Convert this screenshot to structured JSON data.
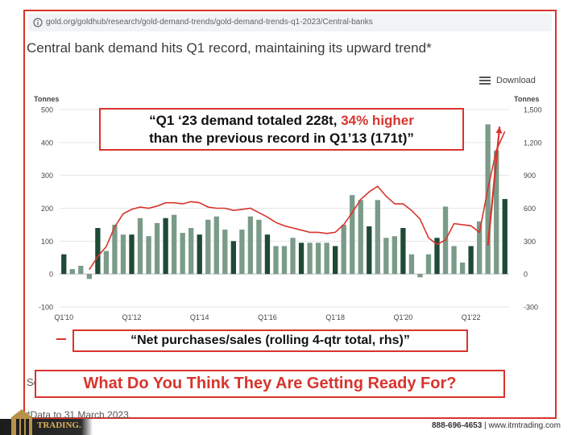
{
  "browser": {
    "url": "gold.org/goldhub/research/gold-demand-trends/gold-demand-trends-q1-2023/Central-banks"
  },
  "header": {
    "title": "Central bank demand hits Q1 record, maintaining its upward trend*",
    "download_label": "Download"
  },
  "callouts": {
    "top_line1_a": "“Q1 ‘23 demand totaled 228t, ",
    "top_line1_b": "34% higher",
    "top_line2": "than the previous record in Q1’13 (171t)”",
    "legend_text": "“Net purchases/sales (rolling 4-qtr total, rhs)”",
    "question": "What Do You Think They Are Getting Ready For?"
  },
  "source_fragment": "So",
  "footnote": "*Data to 31 March 2023.",
  "footer": {
    "brand": "TRADING.",
    "phone": "888-696-4653",
    "separator": " | ",
    "website": "www.itmtrading.com"
  },
  "colors": {
    "bar_light": "#7a9b88",
    "bar_dark": "#1f4a35",
    "line": "#d8342c",
    "accent": "#d8342c"
  },
  "chart_data": {
    "type": "bar",
    "left_axis": {
      "label": "Tonnes",
      "ticks": [
        500,
        400,
        300,
        200,
        100,
        0,
        -100
      ],
      "range": [
        -100,
        500
      ]
    },
    "right_axis": {
      "label": "Tonnes",
      "ticks": [
        "1,500",
        "1,200",
        "900",
        "600",
        "300",
        "0",
        "-300"
      ],
      "range": [
        -300,
        1500
      ]
    },
    "x_tick_labels": [
      "Q1'10",
      "Q1'12",
      "Q1'14",
      "Q1'16",
      "Q1'18",
      "Q1'20",
      "Q1'22"
    ],
    "quarters": [
      "Q1'10",
      "Q2'10",
      "Q3'10",
      "Q4'10",
      "Q1'11",
      "Q2'11",
      "Q3'11",
      "Q4'11",
      "Q1'12",
      "Q2'12",
      "Q3'12",
      "Q4'12",
      "Q1'13",
      "Q2'13",
      "Q3'13",
      "Q4'13",
      "Q1'14",
      "Q2'14",
      "Q3'14",
      "Q4'14",
      "Q1'15",
      "Q2'15",
      "Q3'15",
      "Q4'15",
      "Q1'16",
      "Q2'16",
      "Q3'16",
      "Q4'16",
      "Q1'17",
      "Q2'17",
      "Q3'17",
      "Q4'17",
      "Q1'18",
      "Q2'18",
      "Q3'18",
      "Q4'18",
      "Q1'19",
      "Q2'19",
      "Q3'19",
      "Q4'19",
      "Q1'20",
      "Q2'20",
      "Q3'20",
      "Q4'20",
      "Q1'21",
      "Q2'21",
      "Q3'21",
      "Q4'21",
      "Q1'22",
      "Q2'22",
      "Q3'22",
      "Q4'22",
      "Q1'23"
    ],
    "series": [
      {
        "type": "bar",
        "axis": "left",
        "values": [
          60,
          15,
          25,
          -15,
          140,
          70,
          150,
          120,
          120,
          170,
          115,
          155,
          170,
          180,
          125,
          140,
          120,
          165,
          175,
          135,
          100,
          135,
          175,
          165,
          120,
          85,
          85,
          110,
          95,
          95,
          95,
          95,
          85,
          150,
          240,
          225,
          145,
          225,
          110,
          115,
          140,
          60,
          -10,
          60,
          110,
          205,
          85,
          35,
          85,
          160,
          455,
          375,
          228
        ],
        "dark_quarters": [
          "Q1'10",
          "Q1'11",
          "Q1'12",
          "Q1'13",
          "Q1'14",
          "Q1'15",
          "Q1'16",
          "Q1'17",
          "Q1'18",
          "Q1'19",
          "Q1'20",
          "Q1'21",
          "Q1'22",
          "Q1'23"
        ]
      },
      {
        "type": "line",
        "axis": "right",
        "values": [
          null,
          null,
          null,
          40,
          160,
          250,
          430,
          550,
          590,
          610,
          600,
          620,
          650,
          650,
          640,
          660,
          650,
          610,
          600,
          600,
          580,
          590,
          600,
          560,
          520,
          470,
          440,
          420,
          400,
          380,
          380,
          370,
          380,
          450,
          560,
          680,
          750,
          800,
          710,
          640,
          640,
          580,
          500,
          330,
          270,
          310,
          460,
          450,
          440,
          380,
          780,
          1130,
          1300
        ]
      }
    ],
    "annotations": [
      {
        "type": "arrow",
        "from_quarter": "Q3'22",
        "from_value": 260,
        "to_quarter": "Q4'22",
        "to_value": 1300
      }
    ]
  }
}
